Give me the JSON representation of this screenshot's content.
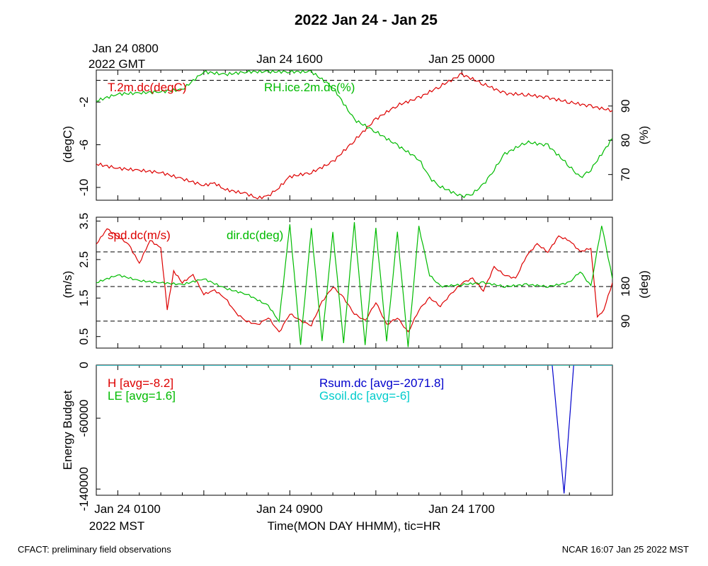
{
  "page": {
    "title": "2022 Jan 24 - Jan 25",
    "footer_left": "CFACT: preliminary field observations",
    "footer_right": "NCAR 16:07 Jan 25 2022 MST",
    "top_axis": {
      "origin_line1": "Jan 24 0800",
      "origin_line2": "2022 GMT",
      "labels": [
        "Jan 24 1600",
        "Jan 25 0000"
      ]
    },
    "bottom_axis": {
      "labels": [
        "Jan 24 0100",
        "Jan 24 0900",
        "Jan 24 1700"
      ],
      "zone": "2022 MST",
      "xlabel": "Time(MON DAY HHMM), tic=HR"
    }
  },
  "colors": {
    "red": "#dd0000",
    "green": "#00bb00",
    "blue": "#0000cc",
    "cyan": "#00cccc",
    "axis": "#000000"
  },
  "chart_data": [
    {
      "type": "line",
      "panel": "temperature-humidity",
      "x_unit": "hours since Jan 24 0000 MST",
      "xlim": [
        0.0,
        24.0
      ],
      "ylabel": "(degC)",
      "ylim": [
        -11.2,
        1.0
      ],
      "yticks": [
        "-2",
        "-6",
        "-10"
      ],
      "ytick_values": [
        -2,
        -6,
        -10
      ],
      "ylabel_right": "(%)",
      "ylim_right": [
        62.5,
        100.5
      ],
      "yticks_right": [
        "90",
        "80",
        "70"
      ],
      "ytick_values_right": [
        90,
        80,
        70
      ],
      "ref_lines_right": [
        97.5
      ],
      "series": [
        {
          "name": "T.2m.dc(degC)",
          "axis": "left",
          "color": "#dd0000",
          "x": [
            0,
            1,
            2,
            3,
            4,
            5,
            5.5,
            6,
            7,
            7.5,
            8,
            8.5,
            9,
            10,
            11,
            12,
            13,
            14,
            15,
            16,
            17,
            18,
            19,
            20,
            21,
            22,
            23,
            24
          ],
          "y": [
            -7.8,
            -8.2,
            -8.4,
            -8.6,
            -9.2,
            -9.8,
            -9.6,
            -10.2,
            -10.6,
            -11.0,
            -10.8,
            -10.0,
            -9.0,
            -8.6,
            -7.6,
            -5.6,
            -3.6,
            -2.3,
            -1.6,
            -0.5,
            0.6,
            -0.3,
            -1.2,
            -1.3,
            -1.6,
            -2.0,
            -2.4,
            -2.8
          ]
        },
        {
          "name": "RH.ice.2m.dc(%)",
          "axis": "right",
          "color": "#00bb00",
          "x": [
            0,
            1,
            2,
            3,
            4,
            5,
            6,
            7,
            8,
            9,
            10,
            11,
            12,
            13,
            14,
            15,
            15.5,
            16,
            17,
            17.5,
            18,
            18.5,
            19,
            20,
            21,
            22,
            22.5,
            23,
            24
          ],
          "y": [
            91.5,
            93.5,
            93.8,
            94.2,
            94.8,
            100.0,
            99.2,
            100.0,
            100.0,
            100.0,
            100.0,
            95.5,
            86.0,
            82.5,
            78.5,
            74.5,
            69.0,
            66.5,
            63.5,
            64.5,
            67.0,
            71.5,
            76.0,
            79.5,
            78.5,
            72.5,
            69.0,
            71.5,
            80.5
          ]
        }
      ]
    },
    {
      "type": "line",
      "panel": "wind",
      "x_unit": "hours since Jan 24 0000 MST",
      "xlim": [
        0.0,
        24.0
      ],
      "ylabel": "(m/s)",
      "ylim": [
        0.2,
        3.6
      ],
      "yticks": [
        "0.5",
        "1.5",
        "2.5",
        "3.5"
      ],
      "ytick_values": [
        0.5,
        1.5,
        2.5,
        3.5
      ],
      "ylabel_right": "(deg)",
      "ylim_right": [
        20,
        360
      ],
      "yticks_right": [
        "180",
        "90"
      ],
      "ytick_values_right": [
        180,
        90
      ],
      "ref_lines_right": [
        90,
        180,
        270
      ],
      "series": [
        {
          "name": "spd.dc(m/s)",
          "axis": "left",
          "color": "#dd0000",
          "x": [
            0,
            0.5,
            1,
            1.5,
            2,
            2.5,
            3,
            3.3,
            3.6,
            4,
            4.5,
            5,
            5.5,
            6,
            6.5,
            7,
            7.5,
            8,
            8.5,
            9,
            9.5,
            10,
            10.5,
            11,
            11.5,
            12,
            12.5,
            13,
            13.5,
            14,
            14.5,
            15,
            15.5,
            16,
            16.5,
            17,
            17.5,
            18,
            18.5,
            19,
            19.5,
            20,
            20.5,
            21,
            21.5,
            22,
            22.5,
            23,
            23.3,
            23.6,
            24
          ],
          "y": [
            2.9,
            3.3,
            3.1,
            2.9,
            2.4,
            3.0,
            2.8,
            1.2,
            2.2,
            1.9,
            2.1,
            1.6,
            1.7,
            1.5,
            1.1,
            0.9,
            0.8,
            1.0,
            0.6,
            1.1,
            0.9,
            0.8,
            1.4,
            1.8,
            1.5,
            1.1,
            0.9,
            1.4,
            0.8,
            1.0,
            0.6,
            1.2,
            1.5,
            1.3,
            1.6,
            1.9,
            2.0,
            1.7,
            2.3,
            2.1,
            2.0,
            2.6,
            2.9,
            2.7,
            3.1,
            3.0,
            2.7,
            2.8,
            1.0,
            1.2,
            1.9
          ]
        },
        {
          "name": "dir.dc(deg)",
          "axis": "right",
          "color": "#00bb00",
          "x": [
            0,
            1,
            2,
            3,
            4,
            5,
            6,
            7,
            8,
            8.5,
            9,
            9.5,
            10,
            10.5,
            11,
            11.5,
            12,
            12.5,
            13,
            13.5,
            14,
            14.5,
            15,
            15.5,
            16,
            17,
            18,
            19,
            20,
            21,
            22,
            22.5,
            23,
            23.5,
            24
          ],
          "y": [
            190,
            210,
            195,
            190,
            185,
            200,
            175,
            160,
            130,
            90,
            340,
            30,
            330,
            40,
            320,
            35,
            345,
            30,
            330,
            40,
            320,
            25,
            335,
            210,
            180,
            185,
            190,
            180,
            185,
            180,
            190,
            220,
            180,
            340,
            200
          ]
        }
      ]
    },
    {
      "type": "line",
      "panel": "energy-budget",
      "x_unit": "hours since Jan 24 0000 MST",
      "xlim": [
        0.0,
        24.0
      ],
      "ylabel": "Energy Budget",
      "ylim": [
        -147000,
        0
      ],
      "yticks": [
        "0",
        "-60000",
        "-140000"
      ],
      "ytick_values": [
        0,
        -60000,
        -140000
      ],
      "series": [
        {
          "name": "H [avg=-8.2]",
          "color": "#dd0000",
          "x": [
            0,
            24
          ],
          "y": [
            -8.2,
            -8.2
          ]
        },
        {
          "name": "LE [avg=1.6]",
          "color": "#00bb00",
          "x": [
            0,
            24
          ],
          "y": [
            1.6,
            1.6
          ]
        },
        {
          "name": "Rsum.dc [avg=-2071.8]",
          "color": "#0000cc",
          "x": [
            0,
            21.2,
            21.75,
            22.2,
            24
          ],
          "y": [
            0,
            0,
            -145000,
            0,
            0
          ]
        },
        {
          "name": "Gsoil.dc [avg=-6]",
          "color": "#00cccc",
          "x": [
            0,
            24
          ],
          "y": [
            -6,
            -6
          ]
        }
      ]
    }
  ]
}
